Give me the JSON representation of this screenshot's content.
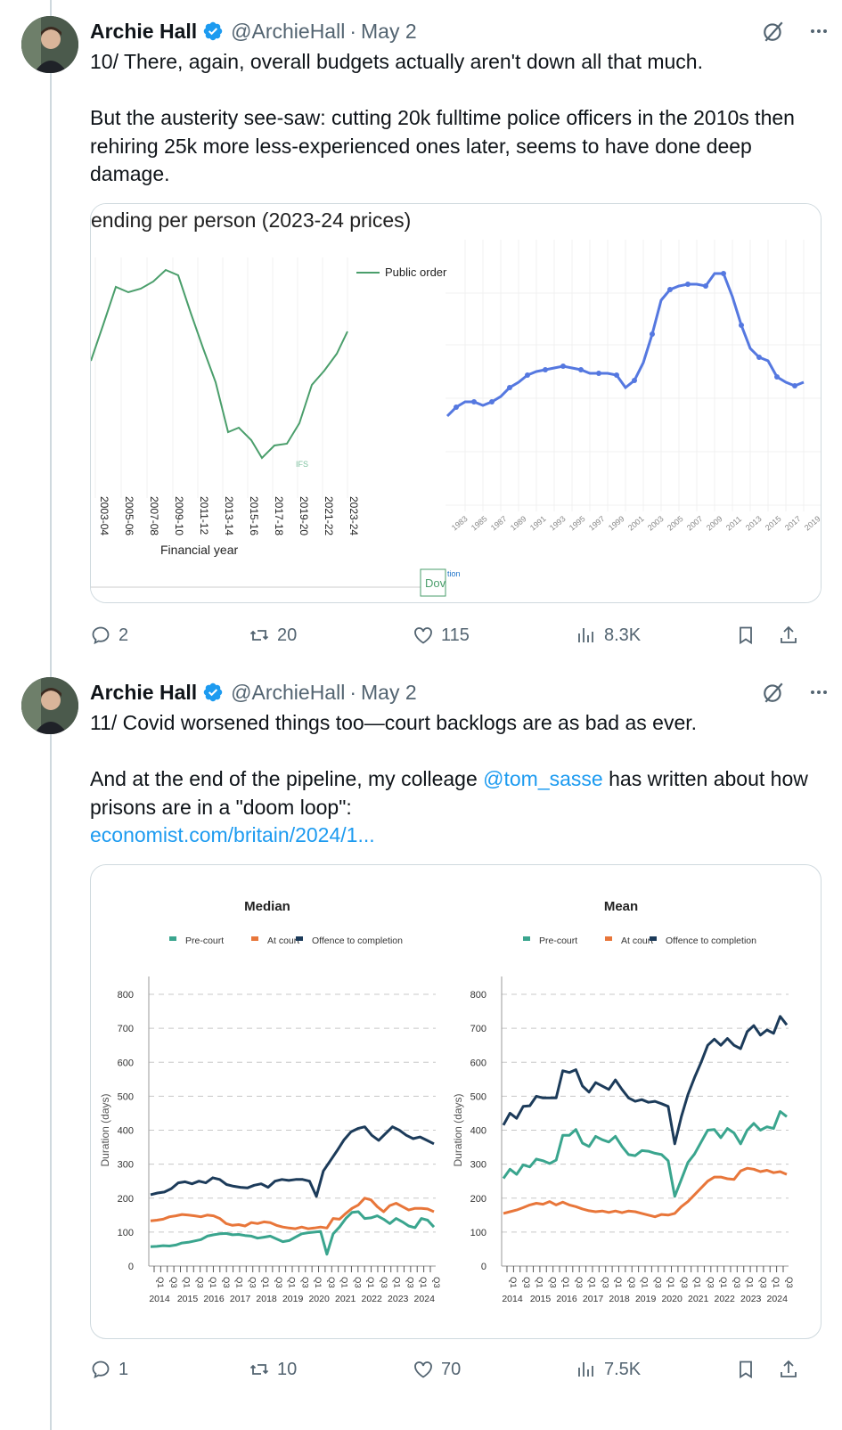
{
  "tweets": [
    {
      "author": "Archie Hall",
      "handle": "@ArchieHall",
      "separator": "·",
      "date": "May 2",
      "text": "10/ There, again, overall budgets actually aren't down all that much.\n\nBut the austerity see-saw: cutting 20k fulltime police officers in the 2010s then rehiring 25k more less-experienced ones later, seems to have done deep damage.",
      "media": {
        "left_title": "ending per person (2023-24 prices)",
        "left_legend": "Public order",
        "left_xlabel": "Financial year",
        "left_ticks": [
          "2003-04",
          "2005-06",
          "2007-08",
          "2009-10",
          "2011-12",
          "2013-14",
          "2015-16",
          "2017-18",
          "2019-20",
          "2021-22",
          "2023-24"
        ],
        "ifs_logo": "IFS",
        "download_label": "Dov",
        "right_small_text": "tion",
        "right_ticks": [
          "1983",
          "1985",
          "1987",
          "1989",
          "1991",
          "1993",
          "1995",
          "1997",
          "1999",
          "2001",
          "2003",
          "2005",
          "2007",
          "2009",
          "2011",
          "2013",
          "2015",
          "2017",
          "2019"
        ]
      },
      "stats": {
        "replies": "2",
        "reposts": "20",
        "likes": "115",
        "views": "8.3K"
      }
    },
    {
      "author": "Archie Hall",
      "handle": "@ArchieHall",
      "separator": "·",
      "date": "May 2",
      "text_part1": "11/ Covid worsened things too—court backlogs are as bad as ever.\n\nAnd at the end of the pipeline, my colleage ",
      "mention": "@tom_sasse",
      "text_part2": " has written about how prisons are in a \"doom loop\":",
      "url": "economist.com/britain/2024/1...",
      "stats": {
        "replies": "1",
        "reposts": "10",
        "likes": "70",
        "views": "7.5K"
      }
    }
  ],
  "chart_data": [
    {
      "type": "line",
      "title": "Median",
      "ylabel": "Duration (days)",
      "ylim": [
        0,
        800
      ],
      "yticks": [
        "0",
        "100",
        "200",
        "300",
        "400",
        "500",
        "600",
        "700",
        "800"
      ],
      "year_labels": [
        "2014",
        "2015",
        "2016",
        "2017",
        "2018",
        "2019",
        "2020",
        "2021",
        "2022",
        "2023",
        "2024"
      ],
      "quarter_labels": [
        "Q1",
        "Q3"
      ],
      "legend_position": "top",
      "series": [
        {
          "name": "Pre-court",
          "color": "#3aa58e",
          "values": [
            57,
            58,
            60,
            59,
            62,
            68,
            70,
            74,
            78,
            88,
            92,
            95,
            96,
            92,
            93,
            90,
            88,
            82,
            85,
            88,
            80,
            72,
            75,
            85,
            95,
            98,
            100,
            102,
            35,
            95,
            115,
            140,
            158,
            160,
            140,
            142,
            148,
            138,
            125,
            140,
            130,
            118,
            113,
            140,
            135,
            115
          ]
        },
        {
          "name": "At court",
          "color": "#e8763a",
          "values": [
            133,
            135,
            138,
            145,
            148,
            152,
            150,
            148,
            145,
            150,
            148,
            140,
            125,
            120,
            122,
            118,
            128,
            125,
            130,
            128,
            120,
            115,
            112,
            110,
            115,
            110,
            112,
            115,
            112,
            140,
            138,
            155,
            170,
            180,
            200,
            195,
            175,
            160,
            178,
            185,
            175,
            165,
            170,
            170,
            168,
            160
          ]
        },
        {
          "name": "Offence to completion",
          "color": "#1c3b5a",
          "values": [
            210,
            215,
            218,
            228,
            245,
            248,
            242,
            250,
            245,
            260,
            255,
            240,
            235,
            232,
            230,
            238,
            242,
            232,
            250,
            255,
            252,
            255,
            255,
            250,
            205,
            280,
            310,
            340,
            372,
            395,
            405,
            410,
            385,
            370,
            390,
            410,
            400,
            385,
            375,
            380,
            370,
            360
          ]
        }
      ]
    },
    {
      "type": "line",
      "title": "Mean",
      "ylabel": "Duration (days)",
      "ylim": [
        0,
        800
      ],
      "yticks": [
        "0",
        "100",
        "200",
        "300",
        "400",
        "500",
        "600",
        "700",
        "800"
      ],
      "year_labels": [
        "2014",
        "2015",
        "2016",
        "2017",
        "2018",
        "2019",
        "2020",
        "2021",
        "2022",
        "2023",
        "2024"
      ],
      "quarter_labels": [
        "Q1",
        "Q3"
      ],
      "legend_position": "top",
      "series": [
        {
          "name": "Pre-court",
          "color": "#3aa58e",
          "values": [
            258,
            285,
            270,
            298,
            292,
            315,
            310,
            302,
            312,
            385,
            385,
            402,
            362,
            352,
            382,
            372,
            365,
            382,
            352,
            328,
            325,
            340,
            338,
            332,
            328,
            310,
            205,
            255,
            305,
            330,
            365,
            400,
            402,
            378,
            405,
            392,
            360,
            400,
            420,
            400,
            410,
            405,
            455,
            440
          ]
        },
        {
          "name": "At court",
          "color": "#e8763a",
          "values": [
            155,
            160,
            165,
            172,
            180,
            185,
            182,
            190,
            180,
            188,
            180,
            175,
            168,
            163,
            160,
            162,
            158,
            162,
            157,
            162,
            160,
            155,
            150,
            145,
            152,
            150,
            155,
            175,
            190,
            210,
            230,
            250,
            262,
            262,
            257,
            255,
            280,
            288,
            285,
            278,
            282,
            275,
            278,
            270
          ]
        },
        {
          "name": "Offence to completion",
          "color": "#1c3b5a",
          "values": [
            415,
            450,
            435,
            470,
            472,
            500,
            495,
            495,
            495,
            575,
            570,
            578,
            530,
            512,
            540,
            530,
            520,
            548,
            520,
            495,
            485,
            490,
            482,
            485,
            478,
            470,
            360,
            440,
            505,
            555,
            600,
            650,
            668,
            650,
            670,
            650,
            640,
            690,
            708,
            680,
            695,
            685,
            735,
            710
          ]
        }
      ]
    }
  ]
}
